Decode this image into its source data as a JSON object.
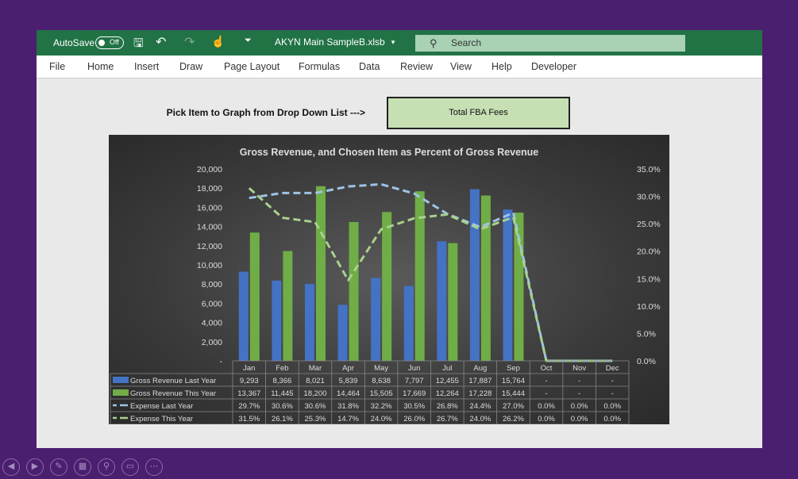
{
  "titlebar": {
    "autosave": "AutoSave",
    "toggle": "Off",
    "filename": "AKYN Main SampleB.xlsb",
    "search": "Search"
  },
  "menu": [
    "File",
    "Home",
    "Insert",
    "Draw",
    "Page Layout",
    "Formulas",
    "Data",
    "Review",
    "View",
    "Help",
    "Developer"
  ],
  "sheet": {
    "pick_label": "Pick Item to Graph from Drop Down List --->",
    "dropdown_value": "Total FBA Fees"
  },
  "chart_data": {
    "type": "bar",
    "title": "Gross Revenue, and Chosen Item as Percent of Gross Revenue",
    "categories": [
      "Jan",
      "Feb",
      "Mar",
      "Apr",
      "May",
      "Jun",
      "Jul",
      "Aug",
      "Sep",
      "Oct",
      "Nov",
      "Dec"
    ],
    "ylim": [
      0,
      20000
    ],
    "y2lim": [
      0,
      0.35
    ],
    "yticks": [
      "-",
      "2,000",
      "4,000",
      "6,000",
      "8,000",
      "10,000",
      "12,000",
      "14,000",
      "16,000",
      "18,000",
      "20,000"
    ],
    "y2ticks": [
      "0.0%",
      "5.0%",
      "10.0%",
      "15.0%",
      "20.0%",
      "25.0%",
      "30.0%",
      "35.0%"
    ],
    "colors": {
      "last": "#4472c4",
      "this": "#70ad47",
      "exp_last": "#9dc3e6",
      "exp_this": "#a9d18e"
    },
    "series": [
      {
        "name": "Gross Revenue Last Year",
        "type": "bar",
        "values": [
          9293,
          8366,
          8021,
          5839,
          8638,
          7797,
          12455,
          17887,
          15764,
          0,
          0,
          0
        ],
        "labels": [
          "9,293",
          "8,366",
          "8,021",
          "5,839",
          "8,638",
          "7,797",
          "12,455",
          "17,887",
          "15,764",
          "-",
          "-",
          "-"
        ]
      },
      {
        "name": "Gross Revenue This Year",
        "type": "bar",
        "values": [
          13367,
          11445,
          18200,
          14464,
          15505,
          17669,
          12264,
          17228,
          15444,
          0,
          0,
          0
        ],
        "labels": [
          "13,367",
          "11,445",
          "18,200",
          "14,464",
          "15,505",
          "17,669",
          "12,264",
          "17,228",
          "15,444",
          "-",
          "-",
          "-"
        ]
      },
      {
        "name": "Expense Last Year",
        "type": "line",
        "values": [
          0.297,
          0.306,
          0.306,
          0.318,
          0.322,
          0.305,
          0.268,
          0.244,
          0.27,
          0,
          0,
          0
        ],
        "labels": [
          "29.7%",
          "30.6%",
          "30.6%",
          "31.8%",
          "32.2%",
          "30.5%",
          "26.8%",
          "24.4%",
          "27.0%",
          "0.0%",
          "0.0%",
          "0.0%"
        ]
      },
      {
        "name": "Expense This Year",
        "type": "line",
        "values": [
          0.315,
          0.261,
          0.253,
          0.147,
          0.24,
          0.26,
          0.267,
          0.24,
          0.262,
          0,
          0,
          0
        ],
        "labels": [
          "31.5%",
          "26.1%",
          "25.3%",
          "14.7%",
          "24.0%",
          "26.0%",
          "26.7%",
          "24.0%",
          "26.2%",
          "0.0%",
          "0.0%",
          "0.0%"
        ]
      }
    ]
  },
  "bottom_icons": [
    "prev-icon",
    "next-icon",
    "pen-icon",
    "slides-icon",
    "zoom-icon",
    "subtitles-icon",
    "more-icon"
  ]
}
